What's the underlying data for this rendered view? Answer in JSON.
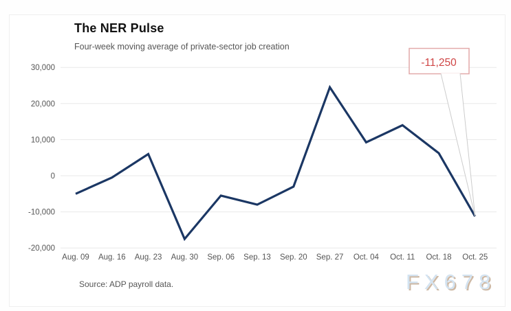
{
  "card": {
    "title": "The NER Pulse",
    "subtitle": "Four-week moving average of private-sector job creation",
    "source": "Source: ADP payroll data.",
    "watermark": "FX678"
  },
  "chart_data": {
    "type": "line",
    "title": "The NER Pulse",
    "subtitle": "Four-week moving average of private-sector job creation",
    "categories": [
      "Aug. 09",
      "Aug. 16",
      "Aug. 23",
      "Aug. 30",
      "Sep. 06",
      "Sep. 13",
      "Sep. 20",
      "Sep. 27",
      "Oct. 04",
      "Oct. 11",
      "Oct. 18",
      "Oct. 25"
    ],
    "values": [
      -5000,
      -500,
      6000,
      -17500,
      -5500,
      -8000,
      -3000,
      24500,
      9250,
      14000,
      6250,
      -11250
    ],
    "xlabel": "",
    "ylabel": "",
    "ylim": [
      -20000,
      30000
    ],
    "ytick_interval": 10000,
    "ytick_labels": [
      "30,000",
      "20,000",
      "10,000",
      "0",
      "-10,000",
      "-20,000"
    ],
    "grid": "horizontal",
    "legend": "none",
    "line_color": "#1b3764",
    "grid_color": "#e8e8e8",
    "axis_label_color": "#555555",
    "annotation": {
      "label": "-11,250",
      "point_category": "Oct. 25",
      "point_index": 11,
      "text_color": "#cf4444",
      "box_border_color": "#e2a9a9",
      "tail_color": "#cccccc"
    },
    "source": "Source: ADP payroll data.",
    "watermark": "FX678"
  }
}
